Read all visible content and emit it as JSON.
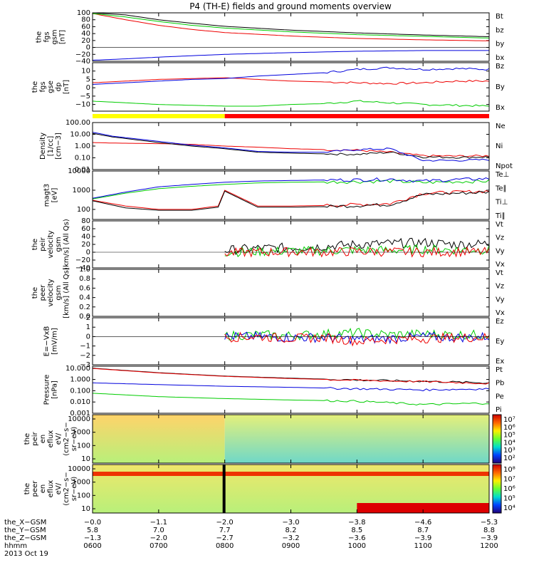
{
  "title": "P4 (TH-E) fields and ground moments overview",
  "colors": {
    "black": "#000000",
    "red": "#ee0000",
    "green": "#00cc00",
    "blue": "#0000dd",
    "yellow": "#ffff00"
  },
  "status_bar": {
    "split_x": -2.0,
    "left_color": "#ffff00",
    "right_color": "#ff0000"
  },
  "chart_data": [
    {
      "id": "fgs-gsm",
      "type": "line",
      "ylabel": [
        "the",
        "fgs",
        "gsm",
        "[nT]"
      ],
      "ylim": [
        -40,
        100
      ],
      "yticks": [
        "100",
        "80",
        "60",
        "40",
        "20",
        "0",
        "−20",
        "−40"
      ],
      "yticks_val": [
        100,
        80,
        60,
        40,
        20,
        0,
        -20,
        -40
      ],
      "legend": [
        {
          "label": "Bt",
          "color": "#000000"
        },
        {
          "label": "bz",
          "color": "#ee0000"
        },
        {
          "label": "by",
          "color": "#00cc00"
        },
        {
          "label": "bx",
          "color": "#0000dd"
        }
      ],
      "series": [
        {
          "name": "Bt",
          "color": "#000000",
          "x": [
            6,
            6.5,
            7,
            7.5,
            8,
            9,
            10,
            11,
            12
          ],
          "y": [
            100,
            94,
            80,
            70,
            61,
            50,
            42,
            36,
            31
          ]
        },
        {
          "name": "bz",
          "color": "#ee0000",
          "x": [
            6,
            6.5,
            7,
            7.5,
            8,
            9,
            10,
            11,
            12
          ],
          "y": [
            98,
            80,
            64,
            52,
            43,
            33,
            26,
            22,
            19
          ]
        },
        {
          "name": "by",
          "color": "#00cc00",
          "x": [
            6,
            6.5,
            7,
            7.5,
            8,
            9,
            10,
            11,
            12
          ],
          "y": [
            98,
            88,
            75,
            64,
            56,
            45,
            37,
            32,
            27
          ]
        },
        {
          "name": "bx",
          "color": "#0000dd",
          "x": [
            6,
            6.5,
            7,
            7.5,
            8,
            9,
            10,
            11,
            12
          ],
          "y": [
            -37,
            -33,
            -28,
            -24,
            -20,
            -15,
            -11,
            -9,
            -9
          ]
        }
      ]
    },
    {
      "id": "fgs-gse",
      "type": "line",
      "ylabel": [
        "the",
        "fgs",
        "gse",
        "dp",
        "[nT]"
      ],
      "ylim": [
        -14,
        15
      ],
      "yticks": [
        "10",
        "5",
        "0",
        "−5",
        "−10"
      ],
      "yticks_val": [
        10,
        5,
        0,
        -5,
        -10
      ],
      "legend": [
        {
          "label": "Bz",
          "color": "#ee0000"
        },
        {
          "label": "By",
          "color": "#00cc00"
        },
        {
          "label": "Bx",
          "color": "#0000dd"
        }
      ],
      "series": [
        {
          "name": "Bz",
          "color": "#ee0000",
          "x": [
            6,
            6.5,
            7,
            7.5,
            8,
            8.5,
            9,
            9.5,
            10,
            10.5,
            11,
            11.5,
            12
          ],
          "y": [
            3,
            4,
            5,
            5.5,
            6,
            5,
            4,
            3.5,
            3,
            2.5,
            3,
            4,
            4
          ]
        },
        {
          "name": "By",
          "color": "#00cc00",
          "x": [
            6,
            6.5,
            7,
            7.5,
            8,
            8.5,
            9,
            9.5,
            10,
            10.5,
            11,
            11.5,
            12
          ],
          "y": [
            -8,
            -9,
            -10,
            -10.5,
            -11,
            -11,
            -10,
            -9.5,
            -8,
            -9,
            -10,
            -10.5,
            -11
          ]
        },
        {
          "name": "Bx",
          "color": "#0000dd",
          "x": [
            6,
            6.5,
            7,
            7.5,
            8,
            8.5,
            9,
            9.5,
            10,
            10.5,
            11,
            11.5,
            12
          ],
          "y": [
            2,
            3,
            4,
            5,
            5.5,
            7,
            8,
            9,
            11,
            12,
            11,
            11.5,
            11
          ]
        }
      ]
    },
    {
      "id": "density",
      "type": "line",
      "log": true,
      "ylabel": [
        "Density",
        "[1/cc]",
        "[cm−3]"
      ],
      "ylim": [
        0.01,
        100
      ],
      "yticks": [
        "100.00",
        "10.00",
        "1.00",
        "0.10",
        "0.01"
      ],
      "yticks_val": [
        100,
        10,
        1,
        0.1,
        0.01
      ],
      "legend": [
        {
          "label": "Ne",
          "color": "#ee0000"
        },
        {
          "label": "Ni",
          "color": "#000000"
        },
        {
          "label": "Npot",
          "color": "#0000dd"
        }
      ],
      "series": [
        {
          "name": "Ne",
          "color": "#ee0000",
          "x": [
            6,
            6.3,
            7,
            7.5,
            8,
            8.5,
            9,
            9.5,
            10,
            10.5,
            11,
            11.5,
            12
          ],
          "y": [
            2,
            1.8,
            1.6,
            1.4,
            1,
            0.8,
            0.6,
            0.5,
            0.45,
            0.3,
            0.15,
            0.14,
            0.15
          ]
        },
        {
          "name": "Ni",
          "color": "#000000",
          "x": [
            6,
            6.3,
            7,
            7.5,
            8,
            8.5,
            9,
            9.5,
            10,
            10.5,
            11,
            11.5,
            12
          ],
          "y": [
            12,
            6,
            2,
            1,
            0.6,
            0.3,
            0.25,
            0.22,
            0.2,
            0.3,
            0.12,
            0.11,
            0.12
          ]
        },
        {
          "name": "Npot",
          "color": "#0000dd",
          "x": [
            6,
            6.3,
            7,
            7.5,
            8,
            8.5,
            9,
            9.5,
            10,
            10.5,
            11,
            11.5,
            12
          ],
          "y": [
            15,
            7,
            2.5,
            1.2,
            0.7,
            0.35,
            0.3,
            0.3,
            0.5,
            0.6,
            0.06,
            0.06,
            0.07
          ]
        }
      ]
    },
    {
      "id": "temperature",
      "type": "line",
      "log": true,
      "ylabel": [
        "magt3",
        "[eV]"
      ],
      "ylim": [
        30,
        10000
      ],
      "yticks": [
        "10000",
        "1000",
        "100"
      ],
      "yticks_val": [
        10000,
        1000,
        100
      ],
      "legend": [
        {
          "label": "Te⊥",
          "color": "#ee0000"
        },
        {
          "label": "Te∥",
          "color": "#000000"
        },
        {
          "label": "Ti⊥",
          "color": "#ee0000"
        },
        {
          "label": "Ti∥",
          "color": "#00cc00"
        }
      ],
      "series": [
        {
          "name": "Te⊥",
          "color": "#ee0000",
          "x": [
            6,
            6.5,
            7,
            7.5,
            7.9,
            8,
            8.5,
            9,
            9.5,
            10,
            10.5,
            11,
            11.5,
            12
          ],
          "y": [
            300,
            150,
            100,
            100,
            150,
            1000,
            150,
            150,
            160,
            180,
            200,
            700,
            800,
            900
          ]
        },
        {
          "name": "Te∥",
          "color": "#000000",
          "x": [
            6,
            6.5,
            7,
            7.5,
            7.9,
            8,
            8.5,
            9,
            9.5,
            10,
            10.5,
            11,
            11.5,
            12
          ],
          "y": [
            280,
            120,
            90,
            90,
            130,
            900,
            130,
            130,
            140,
            160,
            180,
            600,
            700,
            800
          ]
        },
        {
          "name": "Ti∥",
          "color": "#00cc00",
          "x": [
            6,
            6.5,
            7,
            7.5,
            8,
            8.5,
            9,
            9.5,
            10,
            10.5,
            11,
            11.5,
            12
          ],
          "y": [
            350,
            700,
            1200,
            1600,
            2000,
            2400,
            2600,
            2700,
            2800,
            3000,
            2500,
            2800,
            3000
          ]
        },
        {
          "name": "Ti⊥",
          "color": "#0000dd",
          "x": [
            6,
            6.5,
            7,
            7.5,
            8,
            8.5,
            9,
            9.5,
            10,
            10.5,
            11,
            11.5,
            12
          ],
          "y": [
            380,
            800,
            1500,
            2000,
            2600,
            3000,
            3200,
            3400,
            3500,
            3800,
            3000,
            3600,
            4000
          ]
        }
      ]
    },
    {
      "id": "peir-velocity",
      "type": "line",
      "ylabel": [
        "the",
        "peir",
        "velocity",
        "gsm",
        "[km/s] (All Qs)"
      ],
      "ylim": [
        -40,
        80
      ],
      "yticks": [
        "80",
        "60",
        "40",
        "20",
        "0",
        "−20",
        "−40"
      ],
      "yticks_val": [
        80,
        60,
        40,
        20,
        0,
        -20,
        -40
      ],
      "legend": [
        {
          "label": "Vt",
          "color": "#000000"
        },
        {
          "label": "Vz",
          "color": "#ee0000"
        },
        {
          "label": "Vy",
          "color": "#00cc00"
        },
        {
          "label": "Vx",
          "color": "#0000dd"
        }
      ],
      "series": [
        {
          "name": "Vt",
          "color": "#000000",
          "x": [
            8,
            8.5,
            9,
            9.5,
            10,
            10.5,
            11,
            11.5,
            12
          ],
          "y": [
            5,
            10,
            12,
            15,
            20,
            22,
            25,
            20,
            22
          ]
        },
        {
          "name": "Vy",
          "color": "#00cc00",
          "x": [
            8,
            8.5,
            9,
            9.5,
            10,
            10.5,
            11,
            11.5,
            12
          ],
          "y": [
            0,
            2,
            3,
            4,
            6,
            5,
            8,
            6,
            7
          ]
        },
        {
          "name": "Vz",
          "color": "#ee0000",
          "x": [
            8,
            8.5,
            9,
            9.5,
            10,
            10.5,
            11,
            11.5,
            12
          ],
          "y": [
            -2,
            0,
            1,
            0,
            2,
            1,
            0,
            1,
            0
          ]
        }
      ]
    },
    {
      "id": "peer-velocity",
      "type": "line",
      "ylabel": [
        "the",
        "peer",
        "velocity",
        "gsm",
        "[km/s] (All Qs)"
      ],
      "ylim": [
        0,
        1
      ],
      "yticks": [
        "1.0",
        "0.8",
        "0.6",
        "0.4",
        "0.2",
        "0.0"
      ],
      "yticks_val": [
        1,
        0.8,
        0.6,
        0.4,
        0.2,
        0
      ],
      "legend": [
        {
          "label": "Vt",
          "color": "#000000"
        },
        {
          "label": "Vz",
          "color": "#ee0000"
        },
        {
          "label": "Vy",
          "color": "#00cc00"
        },
        {
          "label": "Vx",
          "color": "#0000dd"
        }
      ],
      "series": []
    },
    {
      "id": "efield",
      "type": "line",
      "ylabel": [
        "E=−VxB",
        "[mV/m]"
      ],
      "ylim": [
        -3,
        2
      ],
      "yticks": [
        "2",
        "1",
        "0",
        "−1",
        "−2",
        "−3"
      ],
      "yticks_val": [
        2,
        1,
        0,
        -1,
        -2,
        -3
      ],
      "legend": [
        {
          "label": "Ez",
          "color": "#ee0000"
        },
        {
          "label": "Ey",
          "color": "#00cc00"
        },
        {
          "label": "Ex",
          "color": "#0000dd"
        }
      ],
      "series": [
        {
          "name": "Ey",
          "color": "#00cc00",
          "x": [
            8,
            8.5,
            9,
            9.5,
            10,
            10.5,
            11,
            11.5,
            12
          ],
          "y": [
            0.1,
            0.2,
            0.1,
            0.3,
            0.4,
            0.2,
            0.3,
            0.2,
            0.2
          ]
        },
        {
          "name": "Ex",
          "color": "#0000dd",
          "x": [
            8,
            8.5,
            9,
            9.5,
            10,
            10.5,
            11,
            11.5,
            12
          ],
          "y": [
            0,
            0,
            -0.1,
            -0.1,
            -0.3,
            -0.2,
            0,
            -0.1,
            0
          ]
        },
        {
          "name": "Ez",
          "color": "#ee0000",
          "x": [
            8,
            8.5,
            9,
            9.5,
            10,
            10.5,
            11,
            11.5,
            12
          ],
          "y": [
            -0.1,
            0,
            -0.2,
            -0.1,
            -0.5,
            -0.3,
            -0.2,
            -0.1,
            -0.1
          ]
        }
      ]
    },
    {
      "id": "pressure",
      "type": "line",
      "log": true,
      "ylabel": [
        "Pressure",
        "[nPa]"
      ],
      "ylim": [
        0.001,
        15
      ],
      "yticks": [
        "10.000",
        "1.000",
        "0.100",
        "0.010",
        "0.001"
      ],
      "yticks_val": [
        10,
        1,
        0.1,
        0.01,
        0.001
      ],
      "legend": [
        {
          "label": "Pt",
          "color": "#000000"
        },
        {
          "label": "Pb",
          "color": "#ee0000"
        },
        {
          "label": "Pe",
          "color": "#00cc00"
        },
        {
          "label": "Pi",
          "color": "#0000dd"
        }
      ],
      "series": [
        {
          "name": "Pt",
          "color": "#000000",
          "x": [
            6,
            7,
            8,
            9,
            10,
            11,
            12
          ],
          "y": [
            10,
            4,
            2,
            1.3,
            0.9,
            0.7,
            0.5
          ]
        },
        {
          "name": "Pb",
          "color": "#ee0000",
          "x": [
            6,
            7,
            8,
            9,
            10,
            11,
            12
          ],
          "y": [
            9.5,
            3.8,
            1.9,
            1.2,
            0.85,
            0.65,
            0.45
          ]
        },
        {
          "name": "Pi",
          "color": "#0000dd",
          "x": [
            6,
            7,
            8,
            9,
            10,
            11,
            12
          ],
          "y": [
            0.5,
            0.35,
            0.25,
            0.2,
            0.15,
            0.12,
            0.15
          ]
        },
        {
          "name": "Pe",
          "color": "#00cc00",
          "x": [
            6,
            7,
            8,
            9,
            10,
            11,
            12
          ],
          "y": [
            0.06,
            0.03,
            0.02,
            0.015,
            0.012,
            0.006,
            0.008
          ]
        }
      ]
    },
    {
      "id": "peir-eflux",
      "type": "heatmap",
      "ylabel": [
        "the",
        "peir",
        "en",
        "eflux",
        "eV/",
        "(cm2−s−",
        "sr−eV)"
      ],
      "yticks": [
        "10000",
        "1000",
        "100",
        "10"
      ],
      "colorbar": {
        "labels": [
          "10⁷",
          "10⁶",
          "10⁵",
          "10⁴",
          "10³",
          "10²"
        ]
      },
      "regions": [
        {
          "x0": 6,
          "x1": 8,
          "color_top": "#ffd36a",
          "color_bottom": "#b8f07a"
        },
        {
          "x0": 8,
          "x1": 12,
          "color_top": "#e5f07a",
          "color_bottom": "#6fd8c8"
        }
      ]
    },
    {
      "id": "peer-eflux",
      "type": "heatmap",
      "ylabel": [
        "the",
        "peer",
        "en",
        "eflux",
        "eV/",
        "(cm2−s−",
        "sr−eV)"
      ],
      "yticks": [
        "10000",
        "1000",
        "100",
        "10"
      ],
      "colorbar": {
        "labels": [
          "10⁸",
          "10⁷",
          "10⁶",
          "10⁵",
          "10⁴"
        ]
      },
      "regions": [
        {
          "x0": 6,
          "x1": 12,
          "color_top": "#f0e66a",
          "color_bottom": "#b8f07a"
        }
      ]
    }
  ],
  "x_axis": {
    "time_hours": [
      6,
      7,
      8,
      9,
      10,
      11,
      12
    ],
    "rows": [
      {
        "label": "the_X−GSM",
        "values": [
          "−0.0",
          "−1.1",
          "−2.0",
          "−3.0",
          "−3.8",
          "−4.6",
          "−5.3"
        ]
      },
      {
        "label": "the_Y−GSM",
        "values": [
          "5.8",
          "7.0",
          "7.7",
          "8.2",
          "8.5",
          "8.7",
          "8.8"
        ]
      },
      {
        "label": "the_Z−GSM",
        "values": [
          "−1.3",
          "−2.0",
          "−2.7",
          "−3.2",
          "−3.6",
          "−3.9",
          "−3.9"
        ]
      },
      {
        "label": "hhmm",
        "values": [
          "0600",
          "0700",
          "0800",
          "0900",
          "1000",
          "1100",
          "1200"
        ]
      }
    ],
    "date": "2013 Oct 19"
  }
}
